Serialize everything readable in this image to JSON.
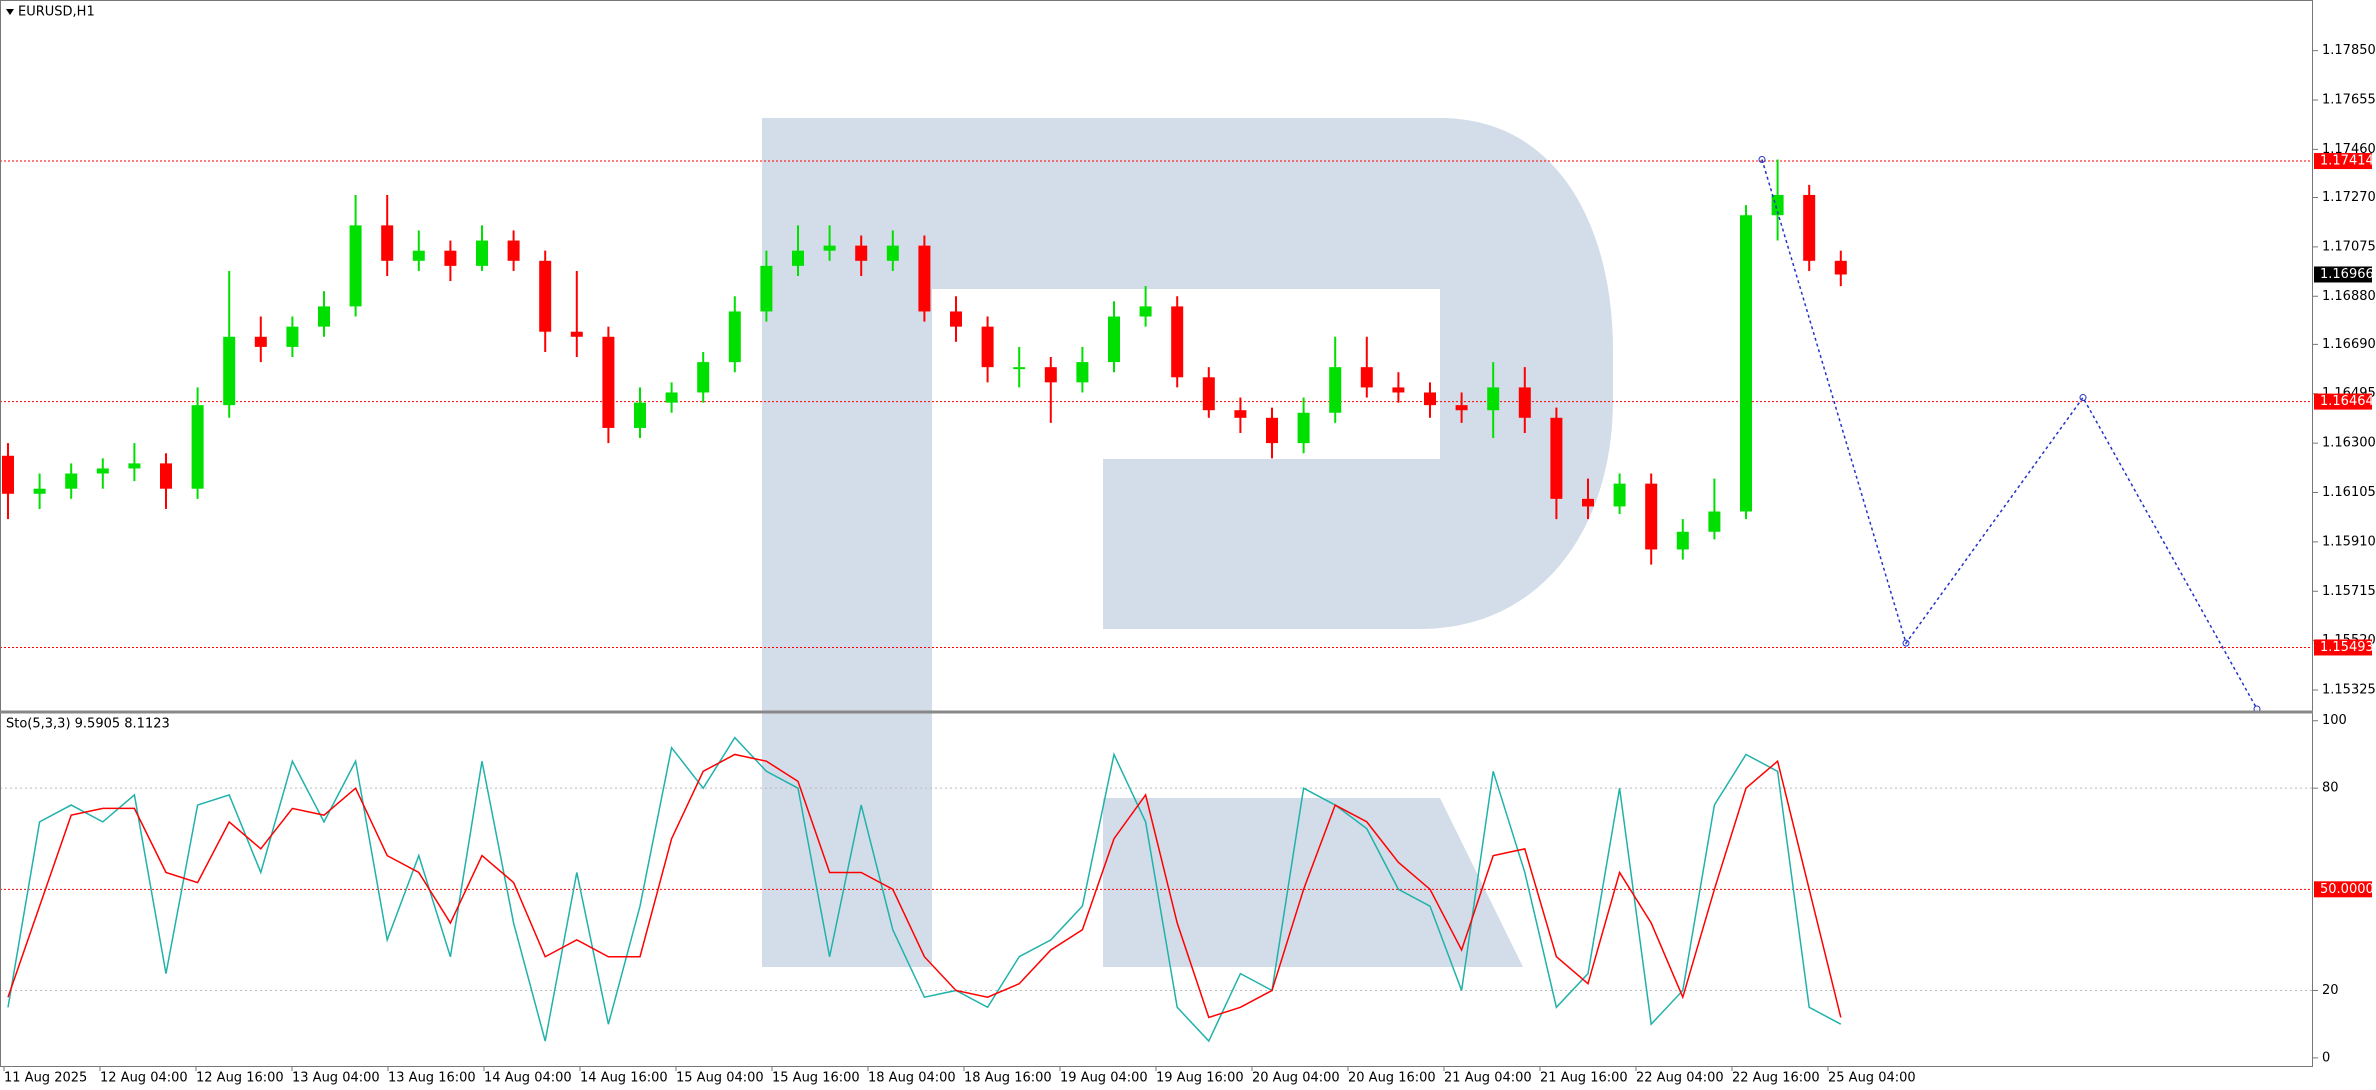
{
  "chart_data": [
    {
      "type": "candlestick",
      "title": "EURUSD,H1",
      "up_color": "#00e000",
      "down_color": "#ff0000",
      "ylim": [
        1.1525,
        1.1805
      ],
      "yticks": [
        {
          "value": 1.1785,
          "label": "1.17850"
        },
        1.17655,
        {
          "value": 1.1746,
          "label": "1.17460"
        },
        {
          "value": 1.1727,
          "label": "1.17270"
        },
        1.17075,
        {
          "value": 1.1688,
          "label": "1.16880"
        },
        {
          "value": 1.1669,
          "label": "1.16690"
        },
        1.16495,
        {
          "value": 1.163,
          "label": "1.16300"
        },
        1.16105,
        {
          "value": 1.1591,
          "label": "1.15910"
        },
        1.15715,
        {
          "value": 1.1552,
          "label": "1.15520"
        },
        1.15325
      ],
      "categories": [
        "11 Aug 2025",
        "12 Aug 04:00",
        "12 Aug 16:00",
        "13 Aug 04:00",
        "13 Aug 16:00",
        "14 Aug 04:00",
        "14 Aug 16:00",
        "15 Aug 04:00",
        "15 Aug 16:00",
        "18 Aug 04:00",
        "18 Aug 16:00",
        "19 Aug 04:00",
        "19 Aug 16:00",
        "20 Aug 04:00",
        "20 Aug 16:00",
        "21 Aug 04:00",
        "21 Aug 16:00",
        "22 Aug 04:00",
        "22 Aug 16:00",
        "25 Aug 04:00"
      ],
      "levels": [
        1.17414,
        1.16464,
        1.15493
      ],
      "level_color": "#ff0000",
      "last_price": 1.16966,
      "forecast": [
        1.1742,
        1.1551,
        1.1648,
        1.1525
      ],
      "forecast_color": "#2233cc",
      "ohlc": [
        [
          1.1625,
          1.163,
          1.16,
          1.161
        ],
        [
          1.161,
          1.1618,
          1.1604,
          1.1612
        ],
        [
          1.1612,
          1.1622,
          1.1608,
          1.1618
        ],
        [
          1.1618,
          1.1624,
          1.1612,
          1.162
        ],
        [
          1.162,
          1.163,
          1.1615,
          1.1622
        ],
        [
          1.1622,
          1.1626,
          1.1604,
          1.1612
        ],
        [
          1.1612,
          1.1652,
          1.1608,
          1.1645
        ],
        [
          1.1645,
          1.1698,
          1.164,
          1.1672
        ],
        [
          1.1672,
          1.168,
          1.1662,
          1.1668
        ],
        [
          1.1668,
          1.168,
          1.1664,
          1.1676
        ],
        [
          1.1676,
          1.169,
          1.1672,
          1.1684
        ],
        [
          1.1684,
          1.1728,
          1.168,
          1.1716
        ],
        [
          1.1716,
          1.1728,
          1.1696,
          1.1702
        ],
        [
          1.1702,
          1.1714,
          1.1698,
          1.1706
        ],
        [
          1.1706,
          1.171,
          1.1694,
          1.17
        ],
        [
          1.17,
          1.1716,
          1.1698,
          1.171
        ],
        [
          1.171,
          1.1714,
          1.1698,
          1.1702
        ],
        [
          1.1702,
          1.1706,
          1.1666,
          1.1674
        ],
        [
          1.1674,
          1.1698,
          1.1664,
          1.1672
        ],
        [
          1.1672,
          1.1676,
          1.163,
          1.1636
        ],
        [
          1.1636,
          1.1652,
          1.1632,
          1.1646
        ],
        [
          1.1646,
          1.1654,
          1.1642,
          1.165
        ],
        [
          1.165,
          1.1666,
          1.1646,
          1.1662
        ],
        [
          1.1662,
          1.1688,
          1.1658,
          1.1682
        ],
        [
          1.1682,
          1.1706,
          1.1678,
          1.17
        ],
        [
          1.17,
          1.1716,
          1.1696,
          1.1706
        ],
        [
          1.1706,
          1.1716,
          1.1702,
          1.1708
        ],
        [
          1.1708,
          1.1712,
          1.1696,
          1.1702
        ],
        [
          1.1702,
          1.1714,
          1.1698,
          1.1708
        ],
        [
          1.1708,
          1.1712,
          1.1678,
          1.1682
        ],
        [
          1.1682,
          1.1688,
          1.167,
          1.1676
        ],
        [
          1.1676,
          1.168,
          1.1654,
          1.166
        ],
        [
          1.166,
          1.1668,
          1.1652,
          1.166
        ],
        [
          1.166,
          1.1664,
          1.1638,
          1.1654
        ],
        [
          1.1654,
          1.1668,
          1.165,
          1.1662
        ],
        [
          1.1662,
          1.1686,
          1.1658,
          1.168
        ],
        [
          1.168,
          1.1692,
          1.1676,
          1.1684
        ],
        [
          1.1684,
          1.1688,
          1.1652,
          1.1656
        ],
        [
          1.1656,
          1.166,
          1.164,
          1.1643
        ],
        [
          1.1643,
          1.1648,
          1.1634,
          1.164
        ],
        [
          1.164,
          1.1644,
          1.1624,
          1.163
        ],
        [
          1.163,
          1.1648,
          1.1626,
          1.1642
        ],
        [
          1.1642,
          1.1672,
          1.1638,
          1.166
        ],
        [
          1.166,
          1.1672,
          1.1648,
          1.1652
        ],
        [
          1.1652,
          1.1658,
          1.1646,
          1.165
        ],
        [
          1.165,
          1.1654,
          1.164,
          1.1645
        ],
        [
          1.1645,
          1.165,
          1.1638,
          1.1643
        ],
        [
          1.1643,
          1.1662,
          1.1632,
          1.1652
        ],
        [
          1.1652,
          1.166,
          1.1634,
          1.164
        ],
        [
          1.164,
          1.1644,
          1.16,
          1.1608
        ],
        [
          1.1608,
          1.1616,
          1.16,
          1.1605
        ],
        [
          1.1605,
          1.1618,
          1.1602,
          1.1614
        ],
        [
          1.1614,
          1.1618,
          1.1582,
          1.1588
        ],
        [
          1.1588,
          1.16,
          1.1584,
          1.1595
        ],
        [
          1.1595,
          1.1616,
          1.1592,
          1.1603
        ],
        [
          1.1603,
          1.1724,
          1.16,
          1.172
        ],
        [
          1.172,
          1.1742,
          1.171,
          1.1728
        ],
        [
          1.1728,
          1.1732,
          1.1698,
          1.1702
        ],
        [
          1.1702,
          1.1706,
          1.1692,
          1.16966
        ]
      ]
    },
    {
      "type": "stochastic",
      "title": "Sto(5,3,3) 9.5905 8.1123",
      "ylim": [
        -3,
        102
      ],
      "yticks": [
        0,
        20,
        80,
        100
      ],
      "level": {
        "value": 50,
        "label": "50.0000"
      },
      "series": [
        {
          "color": "#20b2aa",
          "values": [
            15,
            70,
            75,
            70,
            78,
            25,
            75,
            78,
            55,
            88,
            70,
            88,
            35,
            60,
            30,
            88,
            40,
            5,
            55,
            10,
            45,
            92,
            80,
            95,
            85,
            80,
            30,
            75,
            38,
            18,
            20,
            15,
            30,
            35,
            45,
            90,
            70,
            15,
            5,
            25,
            20,
            80,
            75,
            68,
            50,
            45,
            20,
            85,
            55,
            15,
            25,
            80,
            10,
            20,
            75,
            90,
            85,
            15,
            10
          ]
        },
        {
          "color": "#ff0000",
          "values": [
            18,
            45,
            72,
            74,
            74,
            55,
            52,
            70,
            62,
            74,
            72,
            80,
            60,
            55,
            40,
            60,
            52,
            30,
            35,
            30,
            30,
            65,
            85,
            90,
            88,
            82,
            55,
            55,
            50,
            30,
            20,
            18,
            22,
            32,
            38,
            65,
            78,
            40,
            12,
            15,
            20,
            50,
            75,
            70,
            58,
            50,
            32,
            60,
            62,
            30,
            22,
            55,
            40,
            18,
            50,
            80,
            88,
            50,
            12
          ]
        }
      ]
    }
  ]
}
